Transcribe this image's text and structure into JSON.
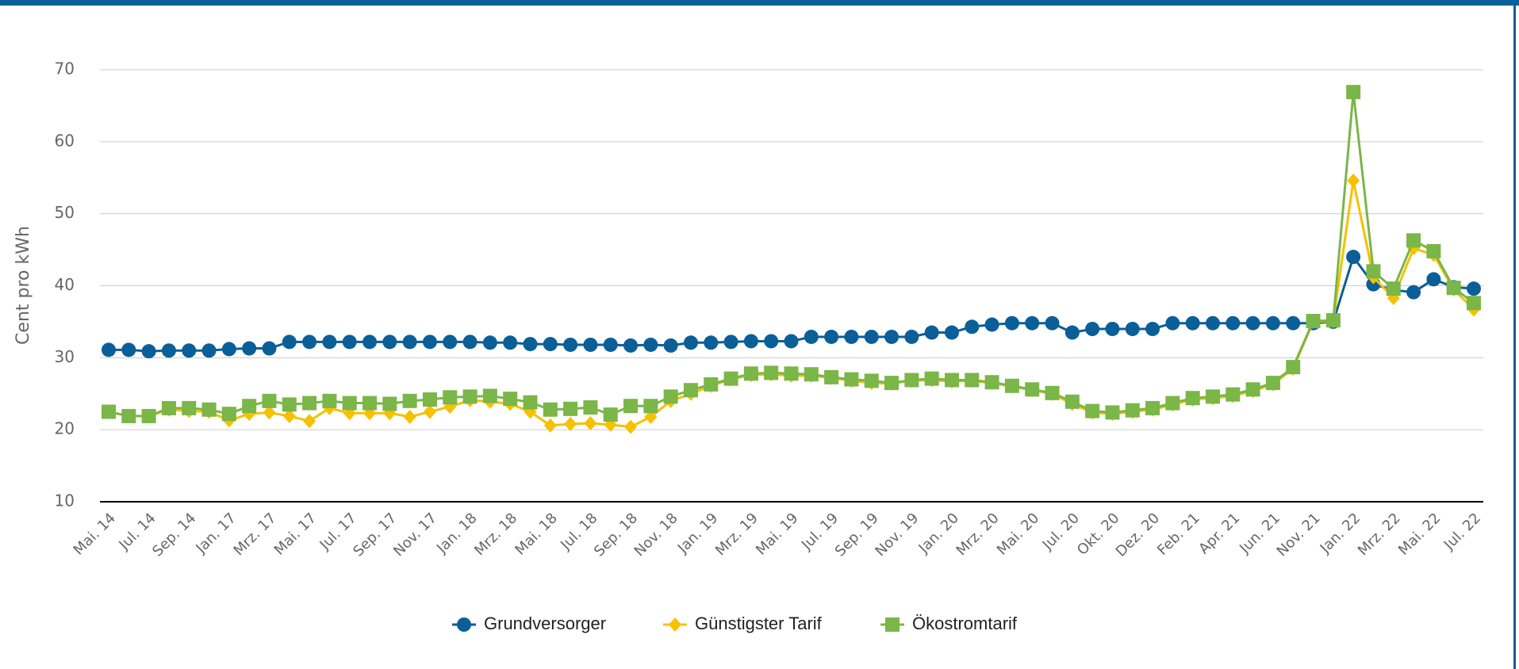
{
  "chart_data": {
    "type": "line",
    "ylabel": "Cent pro kWh",
    "categories": [
      "Mai. 14",
      null,
      "Jul. 14",
      null,
      "Sep. 14",
      null,
      "Jan. 17",
      null,
      "Mrz. 17",
      null,
      "Mai. 17",
      null,
      "Jul. 17",
      null,
      "Sep. 17",
      null,
      "Nov. 17",
      null,
      "Jan. 18",
      null,
      "Mrz. 18",
      null,
      "Mai. 18",
      null,
      "Jul. 18",
      null,
      "Sep. 18",
      null,
      "Nov. 18",
      null,
      "Jan. 19",
      null,
      "Mrz. 19",
      null,
      "Mai. 19",
      null,
      "Jul. 19",
      null,
      "Sep. 19",
      null,
      "Nov. 19",
      null,
      "Jan. 20",
      null,
      "Mrz. 20",
      null,
      "Mai. 20",
      null,
      "Jul. 20",
      null,
      "Okt. 20",
      null,
      "Dez. 20",
      null,
      "Feb. 21",
      null,
      "Apr. 21",
      null,
      "Jun. 21",
      null,
      "Nov. 21",
      null,
      "Jan. 22",
      null,
      "Mrz. 22",
      null,
      "Mai. 22",
      null,
      "Jul. 22"
    ],
    "series": [
      {
        "name": "Grundversorger",
        "color": "#0b5f98",
        "marker": "circle",
        "values": [
          31.1,
          31.1,
          30.9,
          31.0,
          31.0,
          31.0,
          31.2,
          31.3,
          31.3,
          32.2,
          32.2,
          32.2,
          32.2,
          32.2,
          32.2,
          32.2,
          32.2,
          32.2,
          32.2,
          32.1,
          32.1,
          31.9,
          31.9,
          31.8,
          31.8,
          31.8,
          31.7,
          31.8,
          31.7,
          32.1,
          32.1,
          32.2,
          32.3,
          32.3,
          32.3,
          32.9,
          32.9,
          32.9,
          32.9,
          32.9,
          32.9,
          33.5,
          33.5,
          34.3,
          34.6,
          34.8,
          34.8,
          34.8,
          33.5,
          34.0,
          34.0,
          34.0,
          34.0,
          34.8,
          34.8,
          34.8,
          34.8,
          34.8,
          34.8,
          34.8,
          34.8,
          35.0,
          44.0,
          40.2,
          39.4,
          39.1,
          40.9,
          39.8,
          39.6
        ]
      },
      {
        "name": "Günstigster Tarif",
        "color": "#f6c100",
        "marker": "diamond",
        "values": [
          22.5,
          21.9,
          21.9,
          22.8,
          22.6,
          22.5,
          21.3,
          22.2,
          22.4,
          21.9,
          21.2,
          23.0,
          22.3,
          22.3,
          22.3,
          21.8,
          22.5,
          23.2,
          24.1,
          23.9,
          23.6,
          22.5,
          20.6,
          20.8,
          20.9,
          20.7,
          20.4,
          21.8,
          24.0,
          25.0,
          26.1,
          27.0,
          27.6,
          27.7,
          27.5,
          27.5,
          27.2,
          26.8,
          26.5,
          26.4,
          26.8,
          26.9,
          26.7,
          26.8,
          26.5,
          26.0,
          25.5,
          25.0,
          23.6,
          22.4,
          22.2,
          22.5,
          22.8,
          23.5,
          24.2,
          24.4,
          24.7,
          25.4,
          26.3,
          28.5,
          35.0,
          35.1,
          54.6,
          41.2,
          38.3,
          45.2,
          44.3,
          39.5,
          36.7
        ]
      },
      {
        "name": "Ökostromtarif",
        "color": "#7ab648",
        "marker": "square",
        "values": [
          22.5,
          21.9,
          21.9,
          23.0,
          23.0,
          22.8,
          22.2,
          23.3,
          24.0,
          23.5,
          23.7,
          24.0,
          23.7,
          23.7,
          23.6,
          24.0,
          24.2,
          24.5,
          24.6,
          24.7,
          24.3,
          23.8,
          22.8,
          22.9,
          23.1,
          22.1,
          23.3,
          23.3,
          24.6,
          25.5,
          26.3,
          27.1,
          27.8,
          27.9,
          27.8,
          27.7,
          27.3,
          27.0,
          26.8,
          26.5,
          26.9,
          27.1,
          26.9,
          26.9,
          26.6,
          26.1,
          25.6,
          25.1,
          23.9,
          22.6,
          22.4,
          22.7,
          23.0,
          23.7,
          24.4,
          24.6,
          24.9,
          25.6,
          26.5,
          28.7,
          35.1,
          35.2,
          66.9,
          42.0,
          39.6,
          46.3,
          44.8,
          39.7,
          37.6
        ]
      }
    ],
    "ylim": [
      10,
      70
    ],
    "yticks": [
      10,
      20,
      30,
      40,
      50,
      60,
      70
    ],
    "grid": true,
    "legend": "bottom"
  }
}
